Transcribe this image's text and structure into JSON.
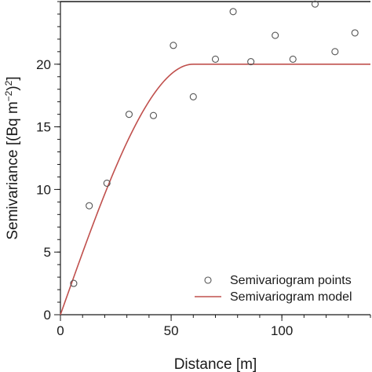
{
  "chart_data": {
    "type": "scatter",
    "title": "",
    "xlabel": "Distance [m]",
    "ylabel_parts": [
      "Semivariance [(Bq m",
      "−2",
      ")",
      "2",
      "]"
    ],
    "xlim": [
      0,
      140
    ],
    "ylim": [
      0,
      25
    ],
    "x_ticks": [
      0,
      50,
      100
    ],
    "y_ticks": [
      0,
      5,
      10,
      15,
      20
    ],
    "minor_x_step": 10,
    "minor_y_step": 1,
    "grid": false,
    "legend_position": "bottom-right",
    "series": [
      {
        "name": "Semivariogram points",
        "kind": "scatter",
        "marker": "open-circle",
        "color": "#555555",
        "x": [
          6,
          13,
          21,
          31,
          42,
          51,
          60,
          70,
          78,
          86,
          97,
          105,
          115,
          124,
          133
        ],
        "y": [
          2.5,
          8.7,
          10.5,
          16.0,
          15.9,
          21.5,
          17.4,
          20.4,
          24.2,
          20.2,
          22.3,
          20.4,
          24.8,
          21.0,
          22.5
        ]
      },
      {
        "name": "Semivariogram model",
        "kind": "line",
        "model": "spherical",
        "nugget": 0,
        "sill": 20,
        "range": 60,
        "color": "#c0504d"
      }
    ]
  }
}
